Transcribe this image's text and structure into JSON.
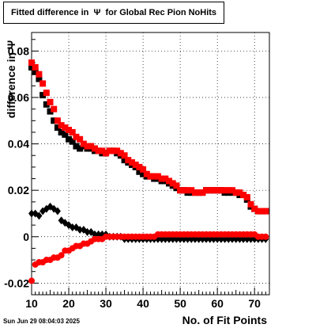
{
  "chart_data": {
    "type": "scatter",
    "title": "Fitted difference in  Ψ  for Global Rec Pion NoHits",
    "xlabel": "No. of Fit Points",
    "ylabel": "difference in Ψ",
    "xlim": [
      10,
      74
    ],
    "ylim": [
      -0.025,
      0.088
    ],
    "xticks": [
      10,
      20,
      30,
      40,
      50,
      60,
      70
    ],
    "yticks": [
      -0.02,
      0,
      0.02,
      0.04,
      0.06,
      0.08
    ],
    "ytick_labels": [
      "-0.02",
      "0",
      "0.02",
      "0.04",
      "0.06",
      "0.08"
    ],
    "grid": true,
    "series": [
      {
        "color": "#000000",
        "marker": "square",
        "x": [
          10,
          11,
          12,
          13,
          14,
          15,
          16,
          17,
          18,
          19,
          20,
          21,
          22,
          23,
          24,
          25,
          26,
          27,
          28,
          29,
          30,
          31,
          32,
          33,
          34,
          35,
          36,
          37,
          38,
          39,
          40,
          41,
          42,
          43,
          44,
          45,
          46,
          47,
          48,
          49,
          50,
          51,
          52,
          53,
          54,
          55,
          56,
          57,
          58,
          59,
          60,
          61,
          62,
          63,
          64,
          65,
          66,
          67,
          68,
          69,
          70,
          71,
          72,
          73
        ],
        "values": [
          0.073,
          0.071,
          0.068,
          0.061,
          0.057,
          0.054,
          0.05,
          0.047,
          0.045,
          0.044,
          0.042,
          0.041,
          0.039,
          0.038,
          0.039,
          0.038,
          0.038,
          0.037,
          0.037,
          0.036,
          0.036,
          0.037,
          0.037,
          0.036,
          0.035,
          0.033,
          0.032,
          0.031,
          0.03,
          0.028,
          0.027,
          0.026,
          0.026,
          0.025,
          0.025,
          0.024,
          0.024,
          0.023,
          0.022,
          0.021,
          0.02,
          0.02,
          0.019,
          0.019,
          0.019,
          0.019,
          0.019,
          0.02,
          0.02,
          0.02,
          0.02,
          0.02,
          0.019,
          0.019,
          0.019,
          0.019,
          0.018,
          0.018,
          0.016,
          0.013,
          0.012,
          0.011,
          0.011,
          0.011
        ]
      },
      {
        "color": "#ff0000",
        "marker": "square",
        "x": [
          10,
          11,
          12,
          13,
          14,
          15,
          16,
          17,
          18,
          19,
          20,
          21,
          22,
          23,
          24,
          25,
          26,
          27,
          28,
          29,
          30,
          31,
          32,
          33,
          34,
          35,
          36,
          37,
          38,
          39,
          40,
          41,
          42,
          43,
          44,
          45,
          46,
          47,
          48,
          49,
          50,
          51,
          52,
          53,
          54,
          55,
          56,
          57,
          58,
          59,
          60,
          61,
          62,
          63,
          64,
          65,
          66,
          67,
          68,
          69,
          70,
          71,
          72,
          73
        ],
        "values": [
          0.075,
          0.073,
          0.07,
          0.066,
          0.062,
          0.058,
          0.055,
          0.05,
          0.048,
          0.047,
          0.046,
          0.045,
          0.043,
          0.042,
          0.04,
          0.039,
          0.039,
          0.038,
          0.037,
          0.037,
          0.036,
          0.037,
          0.037,
          0.037,
          0.036,
          0.035,
          0.033,
          0.032,
          0.031,
          0.03,
          0.029,
          0.027,
          0.026,
          0.026,
          0.026,
          0.025,
          0.025,
          0.024,
          0.023,
          0.022,
          0.02,
          0.02,
          0.02,
          0.02,
          0.019,
          0.019,
          0.019,
          0.02,
          0.02,
          0.02,
          0.02,
          0.02,
          0.02,
          0.02,
          0.02,
          0.019,
          0.019,
          0.018,
          0.017,
          0.014,
          0.012,
          0.011,
          0.011,
          0.011
        ]
      },
      {
        "color": "#000000",
        "marker": "diamond",
        "x": [
          10,
          11,
          12,
          13,
          14,
          15,
          16,
          17,
          18,
          19,
          20,
          21,
          22,
          23,
          24,
          25,
          26,
          27,
          28,
          29,
          30,
          31,
          32,
          33,
          34,
          35,
          36,
          37,
          38,
          39,
          40,
          41,
          42,
          43,
          44,
          45,
          46,
          47,
          48,
          49,
          50,
          51,
          52,
          53,
          54,
          55,
          56,
          57,
          58,
          59,
          60,
          61,
          62,
          63,
          64,
          65,
          66,
          67,
          68,
          69,
          70,
          71,
          72,
          73
        ],
        "values": [
          0.01,
          0.01,
          0.009,
          0.011,
          0.012,
          0.013,
          0.012,
          0.011,
          0.007,
          0.006,
          0.005,
          0.004,
          0.004,
          0.003,
          0.003,
          0.002,
          0.002,
          0.001,
          0.001,
          0.001,
          0.001,
          0.0,
          0.0,
          0.0,
          0.0,
          -0.001,
          -0.001,
          -0.001,
          -0.001,
          -0.001,
          -0.001,
          -0.001,
          -0.001,
          -0.001,
          -0.001,
          -0.001,
          -0.001,
          -0.001,
          -0.001,
          -0.001,
          -0.001,
          -0.001,
          -0.001,
          -0.001,
          -0.001,
          -0.001,
          -0.001,
          -0.001,
          -0.001,
          -0.001,
          -0.001,
          -0.001,
          -0.001,
          -0.001,
          -0.001,
          -0.001,
          -0.001,
          -0.001,
          -0.001,
          -0.001,
          -0.001,
          -0.001,
          -0.001,
          -0.001
        ]
      },
      {
        "color": "#ff0000",
        "marker": "circle",
        "x": [
          10,
          11,
          12,
          13,
          14,
          15,
          16,
          17,
          18,
          19,
          20,
          21,
          22,
          23,
          24,
          25,
          26,
          27,
          28,
          29,
          30,
          31,
          32,
          33,
          34,
          35,
          36,
          37,
          38,
          39,
          40,
          41,
          42,
          43,
          44,
          45,
          46,
          47,
          48,
          49,
          50,
          51,
          52,
          53,
          54,
          55,
          56,
          57,
          58,
          59,
          60,
          61,
          62,
          63,
          64,
          65,
          66,
          67,
          68,
          69,
          70,
          71,
          72,
          73
        ],
        "values": [
          -0.019,
          -0.012,
          -0.011,
          -0.011,
          -0.01,
          -0.01,
          -0.009,
          -0.009,
          -0.008,
          -0.006,
          -0.006,
          -0.005,
          -0.004,
          -0.004,
          -0.003,
          -0.003,
          -0.002,
          -0.001,
          -0.001,
          -0.001,
          0.0,
          0.0,
          0.0,
          0.0,
          0.0,
          0.0,
          0.0,
          0.0,
          0.0,
          0.0,
          0.0,
          0.0,
          0.0,
          0.0,
          0.001,
          0.001,
          0.001,
          0.001,
          0.001,
          0.001,
          0.001,
          0.001,
          0.001,
          0.001,
          0.001,
          0.001,
          0.001,
          0.001,
          0.001,
          0.001,
          0.001,
          0.001,
          0.001,
          0.001,
          0.001,
          0.001,
          0.001,
          0.001,
          0.001,
          0.001,
          0.001,
          0.0,
          0.0,
          0.0
        ]
      }
    ]
  },
  "footer": {
    "timestamp": "Sun Jun 29 08:04:03 2025"
  }
}
